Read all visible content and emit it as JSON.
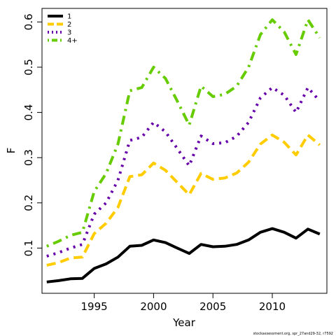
{
  "chart_data": {
    "type": "line",
    "xlabel": "Year",
    "ylabel": "F",
    "xlim": [
      1990.6,
      2014.6
    ],
    "ylim": [
      0.0,
      0.63
    ],
    "x_ticks": [
      1995,
      2000,
      2005,
      2010
    ],
    "y_ticks": [
      0.1,
      0.2,
      0.3,
      0.4,
      0.5,
      0.6
    ],
    "legend_position": "top-left",
    "x": [
      1991,
      1992,
      1993,
      1994,
      1995,
      1996,
      1997,
      1998,
      1999,
      2000,
      2001,
      2002,
      2003,
      2004,
      2005,
      2006,
      2007,
      2008,
      2009,
      2010,
      2011,
      2012,
      2013,
      2014
    ],
    "series": [
      {
        "name": "1",
        "color": "#000000",
        "dash": "solid",
        "values": [
          0.025,
          0.028,
          0.032,
          0.033,
          0.055,
          0.065,
          0.08,
          0.104,
          0.106,
          0.118,
          0.112,
          0.1,
          0.088,
          0.108,
          0.103,
          0.104,
          0.108,
          0.118,
          0.135,
          0.143,
          0.135,
          0.122,
          0.142,
          0.131
        ]
      },
      {
        "name": "2",
        "color": "#ffcc00",
        "dash": "dashed",
        "values": [
          0.062,
          0.068,
          0.078,
          0.08,
          0.132,
          0.155,
          0.19,
          0.258,
          0.262,
          0.288,
          0.272,
          0.245,
          0.218,
          0.265,
          0.252,
          0.255,
          0.266,
          0.29,
          0.33,
          0.35,
          0.334,
          0.306,
          0.35,
          0.328
        ]
      },
      {
        "name": "3",
        "color": "#6600aa",
        "dash": "dotted",
        "values": [
          0.082,
          0.09,
          0.1,
          0.108,
          0.175,
          0.2,
          0.25,
          0.338,
          0.345,
          0.378,
          0.357,
          0.32,
          0.282,
          0.348,
          0.331,
          0.333,
          0.347,
          0.378,
          0.432,
          0.455,
          0.438,
          0.4,
          0.455,
          0.425
        ]
      },
      {
        "name": "4+",
        "color": "#66cc00",
        "dash": "dotdash",
        "values": [
          0.104,
          0.115,
          0.128,
          0.135,
          0.225,
          0.265,
          0.33,
          0.448,
          0.455,
          0.5,
          0.475,
          0.425,
          0.372,
          0.458,
          0.435,
          0.44,
          0.458,
          0.5,
          0.572,
          0.605,
          0.578,
          0.528,
          0.605,
          0.565
        ]
      }
    ]
  },
  "footnote": "stockassessment.org, spr_27and29-32, r7592"
}
